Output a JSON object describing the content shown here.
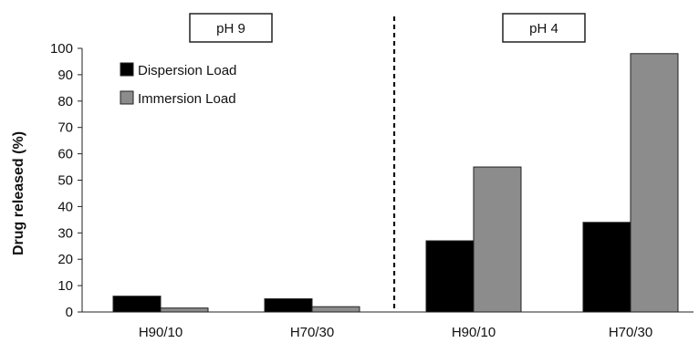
{
  "chart_data": {
    "type": "bar",
    "ylabel": "Drug released (%)",
    "ylim": [
      0,
      100
    ],
    "yticks": [
      0,
      10,
      20,
      30,
      40,
      50,
      60,
      70,
      80,
      90,
      100
    ],
    "panels": [
      {
        "label": "pH 9",
        "categories": [
          "H90/10",
          "H70/30"
        ],
        "series": [
          {
            "name": "Dispersion Load",
            "values": [
              6,
              5
            ]
          },
          {
            "name": "Immersion Load",
            "values": [
              1.5,
              2
            ]
          }
        ]
      },
      {
        "label": "pH 4",
        "categories": [
          "H90/10",
          "H70/30"
        ],
        "series": [
          {
            "name": "Dispersion Load",
            "values": [
              27,
              34
            ]
          },
          {
            "name": "Immersion Load",
            "values": [
              55,
              98
            ]
          }
        ]
      }
    ],
    "legend": {
      "placement": "top-left",
      "entries": [
        "Dispersion Load",
        "Immersion Load"
      ]
    },
    "colors": {
      "Dispersion Load": "#000000",
      "Immersion Load": "#8c8c8c"
    },
    "divider": "dashed",
    "grid": false
  }
}
